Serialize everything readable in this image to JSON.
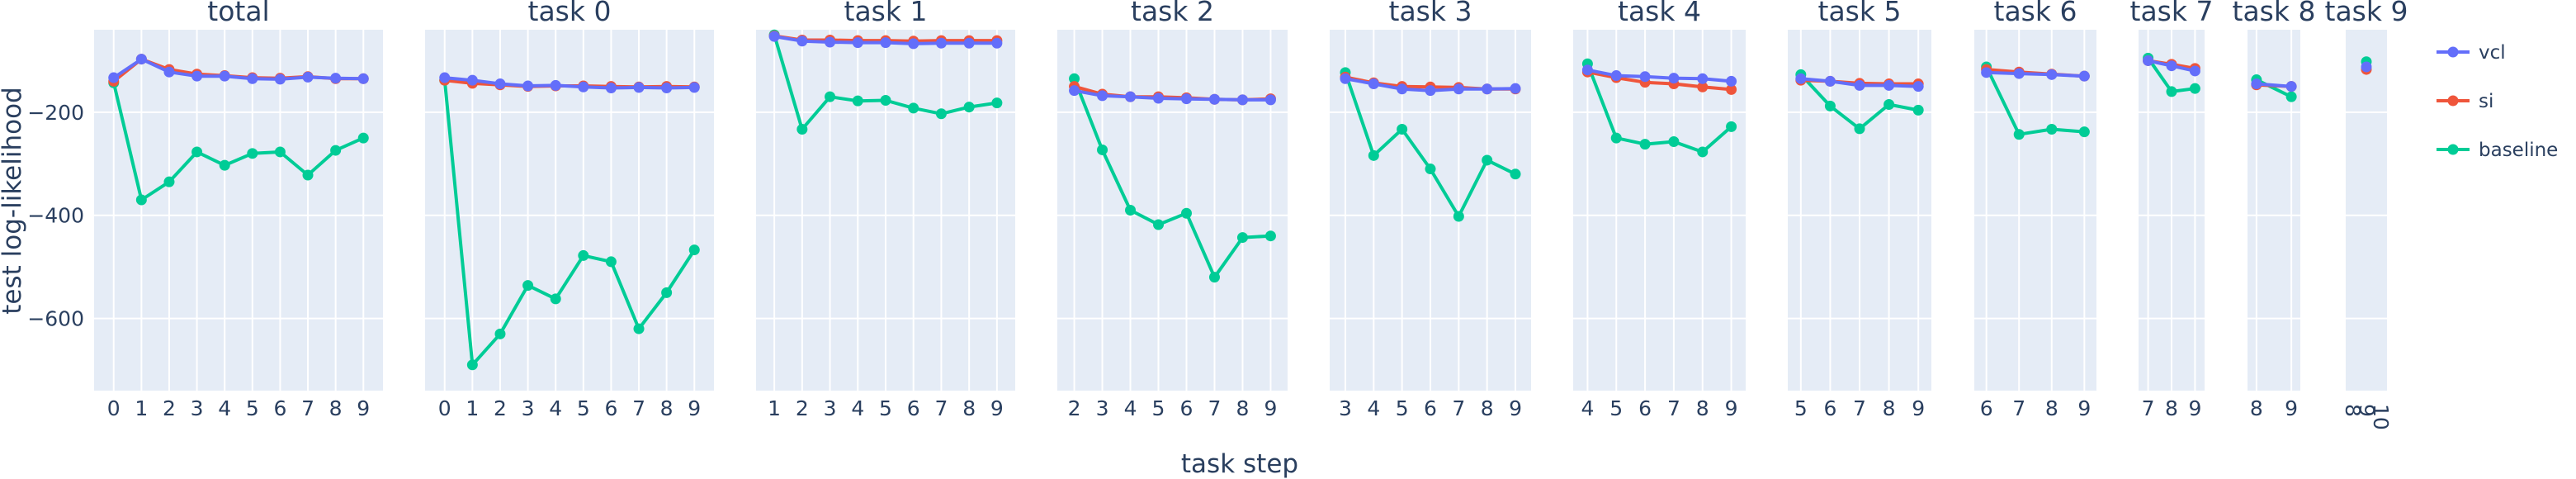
{
  "chart_data": {
    "type": "line",
    "ylabel": "test log-likelihood",
    "xlabel": "task step",
    "ylim": [
      -740,
      -40
    ],
    "yticks": [
      -200,
      -400,
      -600
    ],
    "ytick_labels": [
      "−200",
      "−400",
      "−600"
    ],
    "grid": true,
    "legend": {
      "placement": "top-right",
      "entries": [
        {
          "name": "vcl",
          "color": "#636efa"
        },
        {
          "name": "si",
          "color": "#ef553b"
        },
        {
          "name": "baseline",
          "color": "#00cc96"
        }
      ]
    },
    "panels": [
      {
        "title": "total",
        "x": [
          0,
          1,
          2,
          3,
          4,
          5,
          6,
          7,
          8,
          9
        ],
        "series": {
          "vcl": [
            -133,
            -97,
            -122,
            -130,
            -130,
            -135,
            -136,
            -132,
            -134,
            -135
          ],
          "si": [
            -140,
            -97,
            -117,
            -126,
            -129,
            -133,
            -134,
            -131,
            -135,
            -135
          ],
          "baseline": [
            -143,
            -370,
            -335,
            -277,
            -303,
            -280,
            -277,
            -322,
            -274,
            -250
          ]
        }
      },
      {
        "title": "task 0",
        "x": [
          0,
          1,
          2,
          3,
          4,
          5,
          6,
          7,
          8,
          9
        ],
        "series": {
          "vcl": [
            -133,
            -138,
            -145,
            -149,
            -148,
            -151,
            -153,
            -152,
            -153,
            -152
          ],
          "si": [
            -138,
            -144,
            -147,
            -150,
            -149,
            -149,
            -150,
            -151,
            -150,
            -151
          ],
          "baseline": [
            -138,
            -690,
            -630,
            -536,
            -562,
            -478,
            -490,
            -620,
            -550,
            -467
          ]
        }
      },
      {
        "title": "task 1",
        "x": [
          1,
          2,
          3,
          4,
          5,
          6,
          7,
          8,
          9
        ],
        "series": {
          "vcl": [
            -53,
            -62,
            -64,
            -65,
            -65,
            -67,
            -66,
            -66,
            -66
          ],
          "si": [
            -52,
            -60,
            -60,
            -61,
            -61,
            -62,
            -61,
            -61,
            -61
          ],
          "baseline": [
            -50,
            -233,
            -170,
            -178,
            -177,
            -192,
            -203,
            -190,
            -182
          ]
        }
      },
      {
        "title": "task 2",
        "x": [
          2,
          3,
          4,
          5,
          6,
          7,
          8,
          9
        ],
        "series": {
          "vcl": [
            -158,
            -168,
            -170,
            -173,
            -174,
            -175,
            -176,
            -176
          ],
          "si": [
            -150,
            -165,
            -170,
            -170,
            -172,
            -175,
            -176,
            -174
          ],
          "baseline": [
            -135,
            -273,
            -390,
            -418,
            -396,
            -520,
            -443,
            -440
          ]
        }
      },
      {
        "title": "task 3",
        "x": [
          3,
          4,
          5,
          6,
          7,
          8,
          9
        ],
        "series": {
          "vcl": [
            -135,
            -145,
            -155,
            -158,
            -155,
            -155,
            -154
          ],
          "si": [
            -132,
            -143,
            -150,
            -151,
            -152,
            -155,
            -155
          ],
          "baseline": [
            -123,
            -284,
            -233,
            -310,
            -402,
            -293,
            -320
          ]
        }
      },
      {
        "title": "task 4",
        "x": [
          4,
          5,
          6,
          7,
          8,
          9
        ],
        "series": {
          "vcl": [
            -118,
            -129,
            -131,
            -134,
            -135,
            -140
          ],
          "si": [
            -122,
            -133,
            -142,
            -145,
            -151,
            -156
          ],
          "baseline": [
            -106,
            -250,
            -262,
            -257,
            -277,
            -228
          ]
        }
      },
      {
        "title": "task 5",
        "x": [
          5,
          6,
          7,
          8,
          9
        ],
        "series": {
          "vcl": [
            -135,
            -140,
            -148,
            -148,
            -150
          ],
          "si": [
            -138,
            -140,
            -144,
            -145,
            -145
          ],
          "baseline": [
            -127,
            -188,
            -232,
            -185,
            -196
          ]
        }
      },
      {
        "title": "task 6",
        "x": [
          6,
          7,
          8,
          9
        ],
        "series": {
          "vcl": [
            -123,
            -125,
            -127,
            -130
          ],
          "si": [
            -117,
            -122,
            -126,
            -130
          ],
          "baseline": [
            -112,
            -243,
            -233,
            -238
          ]
        }
      },
      {
        "title": "task 7",
        "x": [
          7,
          8,
          9
        ],
        "series": {
          "vcl": [
            -100,
            -110,
            -120
          ],
          "si": [
            -100,
            -107,
            -115
          ],
          "baseline": [
            -95,
            -160,
            -154
          ]
        }
      },
      {
        "title": "task 8",
        "x": [
          8,
          9
        ],
        "series": {
          "vcl": [
            -145,
            -150
          ],
          "si": [
            -147,
            -150
          ],
          "baseline": [
            -137,
            -170
          ]
        }
      },
      {
        "title": "task 9",
        "x": [
          9
        ],
        "xtick_labels": [
          "8",
          "9",
          "10"
        ],
        "series": {
          "vcl": [
            -112
          ],
          "si": [
            -117
          ],
          "baseline": [
            -102
          ]
        }
      }
    ]
  }
}
